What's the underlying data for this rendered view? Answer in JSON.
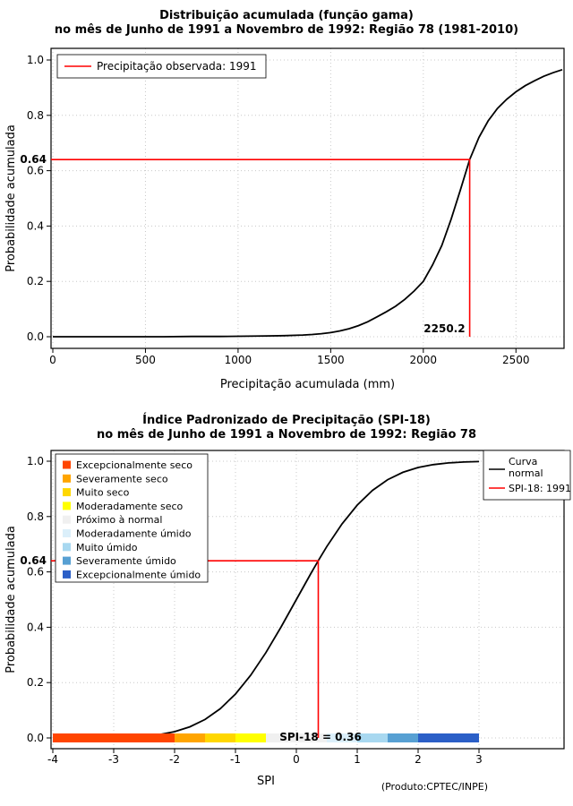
{
  "page": {
    "background": "#FFFFFF"
  },
  "chart_data": [
    {
      "name": "gamma-cdf",
      "type": "line",
      "title": "Distribuição acumulada (função gama)",
      "subtitle": "no mês de Junho de 1991 a Novembro de 1992: Região 78 (1981-2010)",
      "xlabel": "Precipitação acumulada (mm)",
      "ylabel": "Probabilidade acumulada",
      "xlim": [
        0,
        2750
      ],
      "ylim": [
        0,
        1
      ],
      "grid": true,
      "x_tick_values": [
        0,
        500,
        1000,
        1500,
        2000,
        2500
      ],
      "x_tick_labels": [
        "0",
        "500",
        "1000",
        "1500",
        "2000",
        "2500"
      ],
      "y_tick_values": [
        0,
        0.2,
        0.4,
        0.6,
        0.8,
        1
      ],
      "y_tick_labels": [
        "0.0",
        "0.2",
        "0.4",
        "0.6",
        "0.8",
        "1.0"
      ],
      "series": [
        {
          "name": "gamma-cumulative-distribution",
          "color": "#000000",
          "points": [
            [
              0,
              0
            ],
            [
              150,
              0
            ],
            [
              300,
              0
            ],
            [
              450,
              0
            ],
            [
              600,
              0
            ],
            [
              750,
              0.001
            ],
            [
              900,
              0.001
            ],
            [
              1050,
              0.002
            ],
            [
              1150,
              0.003
            ],
            [
              1250,
              0.004
            ],
            [
              1350,
              0.006
            ],
            [
              1400,
              0.008
            ],
            [
              1450,
              0.011
            ],
            [
              1500,
              0.015
            ],
            [
              1550,
              0.021
            ],
            [
              1600,
              0.029
            ],
            [
              1650,
              0.04
            ],
            [
              1700,
              0.054
            ],
            [
              1750,
              0.072
            ],
            [
              1800,
              0.09
            ],
            [
              1850,
              0.11
            ],
            [
              1900,
              0.135
            ],
            [
              1950,
              0.165
            ],
            [
              2000,
              0.2
            ],
            [
              2050,
              0.26
            ],
            [
              2100,
              0.33
            ],
            [
              2150,
              0.425
            ],
            [
              2200,
              0.53
            ],
            [
              2250.2,
              0.64
            ],
            [
              2300,
              0.72
            ],
            [
              2350,
              0.78
            ],
            [
              2400,
              0.825
            ],
            [
              2450,
              0.858
            ],
            [
              2500,
              0.885
            ],
            [
              2550,
              0.907
            ],
            [
              2600,
              0.925
            ],
            [
              2650,
              0.941
            ],
            [
              2700,
              0.954
            ],
            [
              2750,
              0.965
            ]
          ]
        }
      ],
      "annotation": {
        "x": 2250.2,
        "y": 0.64,
        "x_label": "2250.2",
        "y_label": "0.64",
        "color": "#FF0000"
      },
      "legend": {
        "position": "topleft",
        "items": [
          {
            "type": "line",
            "color": "#FF0000",
            "label": "Precipitação observada: 1991"
          }
        ]
      }
    },
    {
      "name": "spi-normal-cdf",
      "type": "line",
      "title": "Índice Padronizado de Precipitação (SPI-18)",
      "subtitle": "no mês de Junho de 1991 a Novembro de 1992: Região 78",
      "xlabel": "SPI",
      "ylabel": "Probabilidade acumulada",
      "xlim": [
        -4,
        3
      ],
      "ylim": [
        0,
        1
      ],
      "grid": true,
      "x_tick_values": [
        -4,
        -3,
        -2,
        -1,
        0,
        1,
        2,
        3
      ],
      "x_tick_labels": [
        "-4",
        "-3",
        "-2",
        "-1",
        "0",
        "1",
        "2",
        "3"
      ],
      "y_tick_values": [
        0,
        0.2,
        0.4,
        0.6,
        0.8,
        1
      ],
      "y_tick_labels": [
        "0.0",
        "0.2",
        "0.4",
        "0.6",
        "0.8",
        "1.0"
      ],
      "series": [
        {
          "name": "normal-cumulative-curve",
          "color": "#000000",
          "points": [
            [
              -4,
              0.0
            ],
            [
              -3.75,
              0.0001
            ],
            [
              -3.5,
              0.0002
            ],
            [
              -3.25,
              0.0006
            ],
            [
              -3,
              0.0013
            ],
            [
              -2.75,
              0.003
            ],
            [
              -2.5,
              0.0062
            ],
            [
              -2.25,
              0.0122
            ],
            [
              -2,
              0.0228
            ],
            [
              -1.75,
              0.0401
            ],
            [
              -1.5,
              0.0668
            ],
            [
              -1.25,
              0.1056
            ],
            [
              -1,
              0.1587
            ],
            [
              -0.75,
              0.2266
            ],
            [
              -0.5,
              0.3085
            ],
            [
              -0.25,
              0.4013
            ],
            [
              0,
              0.5
            ],
            [
              0.25,
              0.5987
            ],
            [
              0.36,
              0.6406
            ],
            [
              0.5,
              0.6915
            ],
            [
              0.75,
              0.7734
            ],
            [
              1,
              0.8413
            ],
            [
              1.25,
              0.8944
            ],
            [
              1.5,
              0.9332
            ],
            [
              1.75,
              0.9599
            ],
            [
              2,
              0.9772
            ],
            [
              2.25,
              0.9878
            ],
            [
              2.5,
              0.9938
            ],
            [
              2.75,
              0.997
            ],
            [
              3,
              0.9987
            ]
          ]
        }
      ],
      "annotation": {
        "x": 0.36,
        "y": 0.64,
        "x_label": "SPI-18 = 0.36",
        "y_label": "0.64",
        "color": "#FF0000"
      },
      "categories": [
        {
          "label": "Excepcionalmente seco",
          "color": "#FF4500",
          "from": -4,
          "to": -2
        },
        {
          "label": "Severamente seco",
          "color": "#FFA500",
          "from": -2,
          "to": -1.5
        },
        {
          "label": "Muito seco",
          "color": "#FFD700",
          "from": -1.5,
          "to": -1
        },
        {
          "label": "Moderadamente seco",
          "color": "#FFFF00",
          "from": -1,
          "to": -0.5
        },
        {
          "label": "Próximo à normal",
          "color": "#F0F0F0",
          "from": -0.5,
          "to": 0.5
        },
        {
          "label": "Moderadamente úmido",
          "color": "#DBEFFA",
          "from": 0.5,
          "to": 1
        },
        {
          "label": "Muito úmido",
          "color": "#A8D8F0",
          "from": 1,
          "to": 1.5
        },
        {
          "label": "Severamente úmido",
          "color": "#57A0D3",
          "from": 1.5,
          "to": 2
        },
        {
          "label": "Excepcionalmente úmido",
          "color": "#2B5FC7",
          "from": 2,
          "to": 3
        }
      ],
      "legend_right": {
        "position": "topright",
        "items": [
          {
            "type": "line",
            "color": "#000000",
            "label": "Curva normal",
            "label_lines": [
              "Curva",
              "normal"
            ]
          },
          {
            "type": "line",
            "color": "#FF0000",
            "label": "SPI-18: 1991",
            "label_lines": [
              "SPI-18: 1991"
            ]
          }
        ]
      },
      "footer": "(Produto:CPTEC/INPE)"
    }
  ]
}
